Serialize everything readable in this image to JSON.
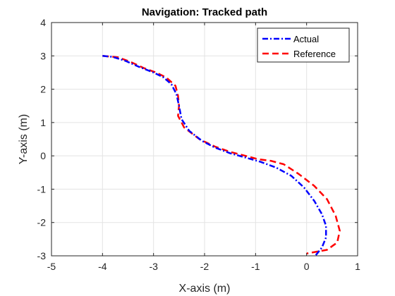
{
  "chart_data": {
    "type": "line",
    "title": "Navigation: Tracked path",
    "xlabel": "X-axis (m)",
    "ylabel": "Y-axis (m)",
    "xlim": [
      -5,
      1
    ],
    "ylim": [
      -3,
      4
    ],
    "xticks": [
      -5,
      -4,
      -3,
      -2,
      -1,
      0,
      1
    ],
    "yticks": [
      -3,
      -2,
      -1,
      0,
      1,
      2,
      3,
      4
    ],
    "grid": true,
    "legend_position": "top-right",
    "series": [
      {
        "name": "Actual",
        "color": "#0000ff",
        "style": "dash-dot",
        "points": [
          [
            -4.0,
            3.0
          ],
          [
            -3.8,
            2.97
          ],
          [
            -3.55,
            2.85
          ],
          [
            -3.3,
            2.68
          ],
          [
            -3.0,
            2.5
          ],
          [
            -2.8,
            2.35
          ],
          [
            -2.65,
            2.15
          ],
          [
            -2.55,
            1.85
          ],
          [
            -2.5,
            1.5
          ],
          [
            -2.45,
            1.1
          ],
          [
            -2.3,
            0.75
          ],
          [
            -2.05,
            0.45
          ],
          [
            -1.8,
            0.25
          ],
          [
            -1.5,
            0.08
          ],
          [
            -1.2,
            -0.05
          ],
          [
            -0.9,
            -0.18
          ],
          [
            -0.6,
            -0.35
          ],
          [
            -0.3,
            -0.6
          ],
          [
            -0.05,
            -0.95
          ],
          [
            0.15,
            -1.35
          ],
          [
            0.3,
            -1.75
          ],
          [
            0.38,
            -2.1
          ],
          [
            0.38,
            -2.45
          ],
          [
            0.3,
            -2.75
          ],
          [
            0.17,
            -3.0
          ]
        ]
      },
      {
        "name": "Reference",
        "color": "#ff0000",
        "style": "dashed",
        "points": [
          [
            -4.0,
            3.0
          ],
          [
            -3.7,
            2.96
          ],
          [
            -3.45,
            2.82
          ],
          [
            -3.2,
            2.64
          ],
          [
            -2.95,
            2.5
          ],
          [
            -2.75,
            2.35
          ],
          [
            -2.57,
            2.1
          ],
          [
            -2.52,
            1.8
          ],
          [
            -2.5,
            1.5
          ],
          [
            -2.52,
            1.2
          ],
          [
            -2.4,
            0.85
          ],
          [
            -2.1,
            0.5
          ],
          [
            -1.8,
            0.28
          ],
          [
            -1.5,
            0.12
          ],
          [
            -1.2,
            0.0
          ],
          [
            -0.95,
            -0.1
          ],
          [
            -0.7,
            -0.15
          ],
          [
            -0.45,
            -0.25
          ],
          [
            -0.15,
            -0.55
          ],
          [
            0.15,
            -0.9
          ],
          [
            0.4,
            -1.3
          ],
          [
            0.57,
            -1.8
          ],
          [
            0.65,
            -2.25
          ],
          [
            0.6,
            -2.6
          ],
          [
            0.4,
            -2.82
          ],
          [
            0.0,
            -2.93
          ]
        ]
      }
    ]
  }
}
